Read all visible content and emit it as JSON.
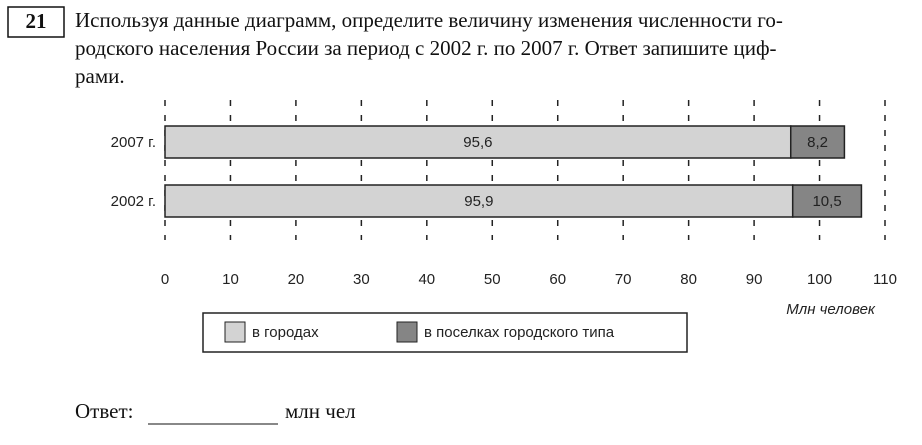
{
  "question": {
    "number": "21",
    "lines": [
      "Используя данные диаграмм, определите величину изменения численности го-",
      "родского населения России за период с 2002 г. по 2007 г. Ответ запишите циф-",
      "рами."
    ]
  },
  "chart_data": {
    "type": "stacked-bar-horizontal",
    "categories": [
      "2007 г.",
      "2002 г."
    ],
    "series": [
      {
        "name": "в городах",
        "color": "#d3d3d3",
        "values": [
          95.6,
          95.9
        ],
        "value_labels": [
          "95,6",
          "95,9"
        ]
      },
      {
        "name": "в поселках городского типа",
        "color": "#858585",
        "values": [
          8.2,
          10.5
        ],
        "value_labels": [
          "8,2",
          "10,5"
        ]
      }
    ],
    "xlabel": "Млн человек",
    "xlim": [
      0,
      110
    ],
    "xticks": [
      0,
      10,
      20,
      30,
      40,
      50,
      60,
      70,
      80,
      90,
      100,
      110
    ],
    "grid": true
  },
  "answer": {
    "label": "Ответ:",
    "unit": "млн чел"
  }
}
